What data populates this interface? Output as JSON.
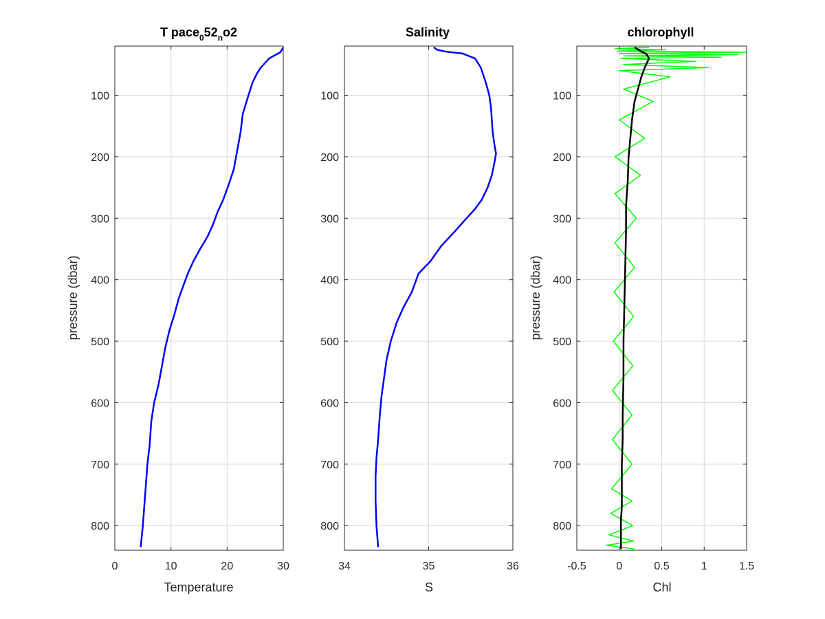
{
  "chart_data": [
    {
      "type": "line",
      "title_parts": [
        "T pace",
        "0",
        "52",
        "n",
        "o2"
      ],
      "xlabel": "Temperature",
      "ylabel": "pressure (dbar)",
      "xlim": [
        0,
        30
      ],
      "ylim": [
        20,
        840
      ],
      "y_reversed": true,
      "xticks": [
        0,
        10,
        20,
        30
      ],
      "xtick_labels": [
        "0",
        "10",
        "20",
        "30"
      ],
      "yticks": [
        100,
        200,
        300,
        400,
        500,
        600,
        700,
        800
      ],
      "ytick_labels": [
        "100",
        "200",
        "300",
        "400",
        "500",
        "600",
        "700",
        "800"
      ],
      "grid": true,
      "series": [
        {
          "color": "#0000ff",
          "x": [
            30,
            29.5,
            27.5,
            26.0,
            25.3,
            24.5,
            23.8,
            22.8,
            22.4,
            22.0,
            21.6,
            21.2,
            20.3,
            19.3,
            18.3,
            17.5,
            16.5,
            15.2,
            14.0,
            13.0,
            12.2,
            11.4,
            10.5,
            9.8,
            9.0,
            8.4,
            7.8,
            7.0,
            6.5,
            6.2,
            5.8,
            5.4,
            5.0,
            4.6
          ],
          "y": [
            22,
            30,
            40,
            55,
            65,
            80,
            100,
            130,
            160,
            180,
            200,
            220,
            245,
            270,
            290,
            310,
            330,
            350,
            370,
            390,
            410,
            430,
            460,
            480,
            510,
            540,
            570,
            600,
            630,
            670,
            700,
            750,
            800,
            835
          ]
        }
      ]
    },
    {
      "type": "line",
      "title": "Salinity",
      "xlabel": "S",
      "xlim": [
        34,
        36
      ],
      "ylim": [
        20,
        840
      ],
      "y_reversed": true,
      "xticks": [
        34,
        35,
        36
      ],
      "xtick_labels": [
        "34",
        "35",
        "36"
      ],
      "yticks": [
        100,
        200,
        300,
        400,
        500,
        600,
        700,
        800
      ],
      "ytick_labels": [
        "100",
        "200",
        "300",
        "400",
        "500",
        "600",
        "700",
        "800"
      ],
      "grid": true,
      "series": [
        {
          "color": "#ff0000",
          "x": [
            35.06,
            35.1,
            35.2,
            35.4,
            35.55,
            35.62,
            35.68,
            35.72,
            35.74,
            35.75,
            35.76,
            35.78,
            35.8,
            35.78,
            35.75,
            35.7,
            35.63,
            35.55,
            35.45,
            35.32,
            35.15,
            35.02,
            34.88,
            34.8,
            34.7,
            34.62,
            34.55,
            34.5,
            34.47,
            34.44,
            34.42,
            34.4,
            34.38,
            34.37,
            34.37,
            34.38,
            34.4
          ],
          "y": [
            22,
            26,
            29,
            32,
            40,
            55,
            80,
            100,
            120,
            140,
            160,
            180,
            195,
            210,
            230,
            250,
            270,
            285,
            300,
            320,
            345,
            370,
            390,
            420,
            445,
            470,
            500,
            530,
            560,
            590,
            620,
            660,
            690,
            720,
            760,
            800,
            835
          ]
        },
        {
          "color": "#0000ff",
          "x": [
            35.06,
            35.1,
            35.2,
            35.4,
            35.55,
            35.62,
            35.68,
            35.72,
            35.74,
            35.75,
            35.76,
            35.78,
            35.8,
            35.78,
            35.75,
            35.7,
            35.63,
            35.55,
            35.45,
            35.32,
            35.15,
            35.02,
            34.88,
            34.8,
            34.7,
            34.62,
            34.55,
            34.5,
            34.47,
            34.44,
            34.42,
            34.4,
            34.38,
            34.37,
            34.37,
            34.38,
            34.4
          ],
          "y": [
            22,
            26,
            29,
            32,
            40,
            55,
            80,
            100,
            120,
            140,
            160,
            180,
            195,
            210,
            230,
            250,
            270,
            285,
            300,
            320,
            345,
            370,
            390,
            420,
            445,
            470,
            500,
            530,
            560,
            590,
            620,
            660,
            690,
            720,
            760,
            800,
            835
          ]
        }
      ]
    },
    {
      "type": "line",
      "title": "chlorophyll",
      "xlabel": "Chl",
      "ylabel": "pressure (dbar)",
      "xlim": [
        -0.5,
        1.5
      ],
      "ylim": [
        20,
        840
      ],
      "y_reversed": true,
      "xticks": [
        -0.5,
        0,
        0.5,
        1,
        1.5
      ],
      "xtick_labels": [
        "-0.5",
        "0",
        "0.5",
        "1",
        "1.5"
      ],
      "yticks": [
        100,
        200,
        300,
        400,
        500,
        600,
        700,
        800
      ],
      "ytick_labels": [
        "100",
        "200",
        "300",
        "400",
        "500",
        "600",
        "700",
        "800"
      ],
      "grid": true,
      "series": [
        {
          "color": "#00ff00",
          "x": [
            0.35,
            -0.05,
            0.55,
            -0.02,
            1.5,
            0.0,
            1.4,
            0.05,
            1.2,
            0.02,
            0.9,
            0.05,
            1.05,
            0.0,
            0.6,
            0.05,
            0.4,
            0.0,
            0.3,
            -0.05,
            0.25,
            -0.05,
            0.2,
            -0.05,
            0.18,
            -0.06,
            0.17,
            -0.07,
            0.16,
            -0.08,
            0.15,
            -0.08,
            0.15,
            -0.09,
            0.15,
            -0.1,
            0.16,
            -0.12,
            0.17,
            -0.15,
            0.18
          ],
          "y": [
            22,
            24,
            26,
            28,
            30,
            32,
            34,
            36,
            38,
            40,
            45,
            50,
            55,
            60,
            70,
            90,
            110,
            140,
            170,
            200,
            230,
            260,
            300,
            340,
            380,
            420,
            460,
            500,
            540,
            580,
            620,
            660,
            700,
            740,
            760,
            780,
            800,
            815,
            825,
            832,
            838
          ]
        },
        {
          "color": "#000000",
          "x": [
            0.18,
            0.25,
            0.32,
            0.35,
            0.3,
            0.26,
            0.22,
            0.18,
            0.15,
            0.13,
            0.11,
            0.1,
            0.08,
            0.08,
            0.07,
            0.06,
            0.05,
            0.05,
            0.04,
            0.04,
            0.03,
            0.03,
            0.03,
            0.02,
            0.02,
            0.02,
            0.02
          ],
          "y": [
            22,
            28,
            33,
            40,
            55,
            70,
            90,
            110,
            140,
            170,
            200,
            240,
            280,
            320,
            380,
            440,
            500,
            560,
            620,
            660,
            700,
            740,
            770,
            790,
            810,
            825,
            838
          ]
        }
      ]
    }
  ]
}
